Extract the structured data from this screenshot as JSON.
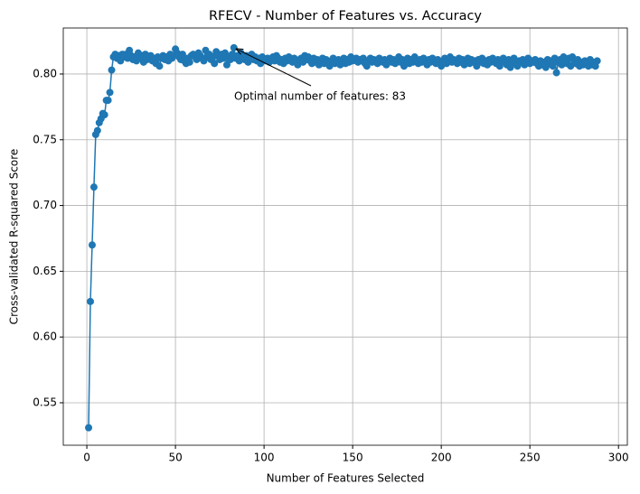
{
  "chart_data": {
    "type": "line",
    "title": "RFECV - Number of Features vs. Accuracy",
    "xlabel": "Number of Features Selected",
    "ylabel": "Cross-validated R-squared Score",
    "annotation": "Optimal number of features: 83",
    "grid": true,
    "xlim": [
      -13.3,
      305
    ],
    "ylim": [
      0.5177,
      0.835
    ],
    "xticks": [
      0,
      50,
      100,
      150,
      200,
      250,
      300
    ],
    "yticks": [
      0.55,
      {
        "value": 0.6,
        "label": "0.60"
      },
      0.65,
      {
        "value": 0.7,
        "label": "0.70"
      },
      0.75,
      {
        "value": 0.8,
        "label": "0.80"
      }
    ],
    "x": [
      1,
      2,
      3,
      4,
      5,
      6,
      7,
      8,
      9,
      10,
      11,
      12,
      13,
      14,
      15,
      16,
      17,
      18,
      19,
      20,
      21,
      22,
      23,
      24,
      25,
      26,
      27,
      28,
      29,
      30,
      31,
      32,
      33,
      34,
      35,
      36,
      37,
      38,
      39,
      40,
      41,
      42,
      43,
      44,
      45,
      46,
      47,
      48,
      49,
      50,
      51,
      52,
      53,
      54,
      55,
      56,
      57,
      58,
      59,
      60,
      61,
      62,
      63,
      64,
      65,
      66,
      67,
      68,
      69,
      70,
      71,
      72,
      73,
      74,
      75,
      76,
      77,
      78,
      79,
      80,
      81,
      82,
      83,
      84,
      85,
      86,
      87,
      88,
      89,
      90,
      91,
      92,
      93,
      94,
      95,
      96,
      97,
      98,
      99,
      100,
      101,
      102,
      103,
      104,
      105,
      106,
      107,
      108,
      109,
      110,
      111,
      112,
      113,
      114,
      115,
      116,
      117,
      118,
      119,
      120,
      121,
      122,
      123,
      124,
      125,
      126,
      127,
      128,
      129,
      130,
      131,
      132,
      133,
      134,
      135,
      136,
      137,
      138,
      139,
      140,
      141,
      142,
      143,
      144,
      145,
      146,
      147,
      148,
      149,
      150,
      151,
      152,
      153,
      154,
      155,
      156,
      157,
      158,
      159,
      160,
      161,
      162,
      163,
      164,
      165,
      166,
      167,
      168,
      169,
      170,
      171,
      172,
      173,
      174,
      175,
      176,
      177,
      178,
      179,
      180,
      181,
      182,
      183,
      184,
      185,
      186,
      187,
      188,
      189,
      190,
      191,
      192,
      193,
      194,
      195,
      196,
      197,
      198,
      199,
      200,
      201,
      202,
      203,
      204,
      205,
      206,
      207,
      208,
      209,
      210,
      211,
      212,
      213,
      214,
      215,
      216,
      217,
      218,
      219,
      220,
      221,
      222,
      223,
      224,
      225,
      226,
      227,
      228,
      229,
      230,
      231,
      232,
      233,
      234,
      235,
      236,
      237,
      238,
      239,
      240,
      241,
      242,
      243,
      244,
      245,
      246,
      247,
      248,
      249,
      250,
      251,
      252,
      253,
      254,
      255,
      256,
      257,
      258,
      259,
      260,
      261,
      262,
      263,
      264,
      265,
      266,
      267,
      268,
      269,
      270,
      271,
      272,
      273,
      274,
      275,
      276,
      277,
      278,
      279,
      280,
      281,
      282,
      283,
      284,
      285,
      286,
      287,
      288
    ],
    "series": [
      {
        "color": "#1f77b4",
        "values": [
          0.531,
          0.627,
          0.67,
          0.714,
          0.754,
          0.757,
          0.763,
          0.766,
          0.77,
          0.769,
          0.78,
          0.78,
          0.786,
          0.803,
          0.813,
          0.815,
          0.812,
          0.814,
          0.81,
          0.815,
          0.813,
          0.815,
          0.812,
          0.818,
          0.814,
          0.811,
          0.813,
          0.81,
          0.816,
          0.812,
          0.814,
          0.809,
          0.815,
          0.811,
          0.813,
          0.814,
          0.81,
          0.812,
          0.808,
          0.813,
          0.806,
          0.812,
          0.814,
          0.811,
          0.813,
          0.81,
          0.815,
          0.812,
          0.814,
          0.819,
          0.816,
          0.813,
          0.811,
          0.815,
          0.81,
          0.808,
          0.812,
          0.809,
          0.814,
          0.815,
          0.813,
          0.811,
          0.816,
          0.814,
          0.812,
          0.81,
          0.818,
          0.813,
          0.815,
          0.811,
          0.813,
          0.808,
          0.817,
          0.814,
          0.811,
          0.815,
          0.812,
          0.816,
          0.807,
          0.813,
          0.811,
          0.815,
          0.82,
          0.812,
          0.814,
          0.81,
          0.816,
          0.813,
          0.811,
          0.814,
          0.809,
          0.812,
          0.815,
          0.811,
          0.813,
          0.81,
          0.812,
          0.808,
          0.813,
          0.811,
          0.81,
          0.812,
          0.809,
          0.811,
          0.813,
          0.81,
          0.814,
          0.812,
          0.809,
          0.811,
          0.808,
          0.812,
          0.81,
          0.813,
          0.811,
          0.809,
          0.812,
          0.81,
          0.807,
          0.811,
          0.812,
          0.809,
          0.814,
          0.811,
          0.813,
          0.81,
          0.808,
          0.812,
          0.809,
          0.811,
          0.807,
          0.81,
          0.812,
          0.808,
          0.811,
          0.809,
          0.806,
          0.81,
          0.812,
          0.808,
          0.809,
          0.811,
          0.807,
          0.81,
          0.812,
          0.808,
          0.811,
          0.809,
          0.813,
          0.81,
          0.811,
          0.812,
          0.809,
          0.811,
          0.81,
          0.812,
          0.808,
          0.806,
          0.81,
          0.812,
          0.809,
          0.811,
          0.81,
          0.808,
          0.812,
          0.81,
          0.809,
          0.811,
          0.807,
          0.81,
          0.812,
          0.809,
          0.811,
          0.808,
          0.81,
          0.813,
          0.809,
          0.811,
          0.806,
          0.81,
          0.812,
          0.808,
          0.811,
          0.809,
          0.813,
          0.81,
          0.808,
          0.811,
          0.809,
          0.812,
          0.81,
          0.807,
          0.811,
          0.809,
          0.812,
          0.81,
          0.808,
          0.811,
          0.809,
          0.806,
          0.81,
          0.812,
          0.808,
          0.811,
          0.813,
          0.809,
          0.811,
          0.81,
          0.808,
          0.812,
          0.809,
          0.811,
          0.807,
          0.81,
          0.812,
          0.808,
          0.811,
          0.809,
          0.81,
          0.806,
          0.811,
          0.809,
          0.812,
          0.808,
          0.81,
          0.807,
          0.811,
          0.809,
          0.812,
          0.81,
          0.808,
          0.811,
          0.806,
          0.81,
          0.812,
          0.809,
          0.807,
          0.811,
          0.805,
          0.81,
          0.812,
          0.808,
          0.806,
          0.81,
          0.809,
          0.811,
          0.807,
          0.81,
          0.812,
          0.808,
          0.81,
          0.809,
          0.811,
          0.808,
          0.806,
          0.81,
          0.807,
          0.809,
          0.805,
          0.811,
          0.808,
          0.81,
          0.806,
          0.812,
          0.801,
          0.809,
          0.811,
          0.807,
          0.813,
          0.81,
          0.808,
          0.812,
          0.806,
          0.813,
          0.81,
          0.808,
          0.811,
          0.806,
          0.809,
          0.807,
          0.81,
          0.808,
          0.806,
          0.811,
          0.807,
          0.809,
          0.806,
          0.81
        ]
      }
    ]
  }
}
